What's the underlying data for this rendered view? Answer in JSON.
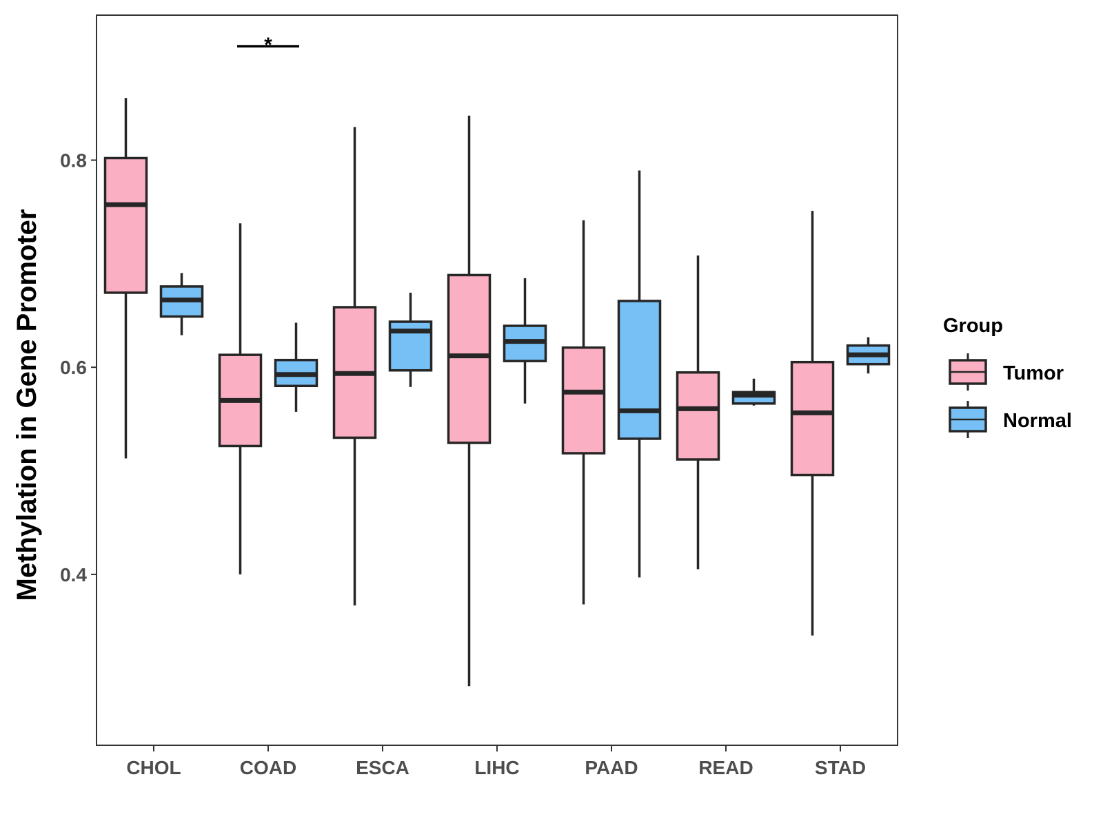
{
  "chart_data": {
    "type": "boxplot",
    "title": "",
    "xlabel": "",
    "ylabel": "Methylation in Gene Promoter",
    "ylim": [
      0.235,
      0.94
    ],
    "yticks": [
      0.4,
      0.6,
      0.8
    ],
    "ytick_labels": [
      "0.4",
      "0.6",
      "0.8"
    ],
    "grid": false,
    "categories": [
      "CHOL",
      "COAD",
      "ESCA",
      "LIHC",
      "PAAD",
      "READ",
      "STAD"
    ],
    "legend": {
      "title": "Group",
      "placement": "right",
      "entries": [
        "Tumor",
        "Normal"
      ]
    },
    "colors": {
      "Tumor": "#FAB0C2",
      "Normal": "#76C0F5",
      "stroke": "#262626"
    },
    "series": [
      {
        "name": "Tumor",
        "boxes": [
          {
            "category": "CHOL",
            "min": 0.512,
            "q1": 0.672,
            "median": 0.757,
            "q3": 0.802,
            "max": 0.86
          },
          {
            "category": "COAD",
            "min": 0.4,
            "q1": 0.524,
            "median": 0.568,
            "q3": 0.612,
            "max": 0.739
          },
          {
            "category": "ESCA",
            "min": 0.37,
            "q1": 0.532,
            "median": 0.594,
            "q3": 0.658,
            "max": 0.832
          },
          {
            "category": "LIHC",
            "min": 0.292,
            "q1": 0.527,
            "median": 0.611,
            "q3": 0.689,
            "max": 0.843
          },
          {
            "category": "PAAD",
            "min": 0.371,
            "q1": 0.517,
            "median": 0.576,
            "q3": 0.619,
            "max": 0.742
          },
          {
            "category": "READ",
            "min": 0.405,
            "q1": 0.511,
            "median": 0.56,
            "q3": 0.595,
            "max": 0.708
          },
          {
            "category": "STAD",
            "min": 0.341,
            "q1": 0.496,
            "median": 0.556,
            "q3": 0.605,
            "max": 0.751
          }
        ]
      },
      {
        "name": "Normal",
        "boxes": [
          {
            "category": "CHOL",
            "min": 0.631,
            "q1": 0.649,
            "median": 0.665,
            "q3": 0.678,
            "max": 0.691
          },
          {
            "category": "COAD",
            "min": 0.557,
            "q1": 0.582,
            "median": 0.593,
            "q3": 0.607,
            "max": 0.643
          },
          {
            "category": "ESCA",
            "min": 0.581,
            "q1": 0.597,
            "median": 0.635,
            "q3": 0.644,
            "max": 0.672
          },
          {
            "category": "LIHC",
            "min": 0.565,
            "q1": 0.606,
            "median": 0.625,
            "q3": 0.64,
            "max": 0.686
          },
          {
            "category": "PAAD",
            "min": 0.397,
            "q1": 0.531,
            "median": 0.558,
            "q3": 0.664,
            "max": 0.79
          },
          {
            "category": "READ",
            "min": 0.563,
            "q1": 0.565,
            "median": 0.573,
            "q3": 0.576,
            "max": 0.589
          },
          {
            "category": "STAD",
            "min": 0.594,
            "q1": 0.603,
            "median": 0.612,
            "q3": 0.621,
            "max": 0.629
          }
        ]
      }
    ],
    "annotations": [
      {
        "type": "significance",
        "category": "COAD",
        "y": 0.91,
        "label": "*"
      }
    ]
  }
}
